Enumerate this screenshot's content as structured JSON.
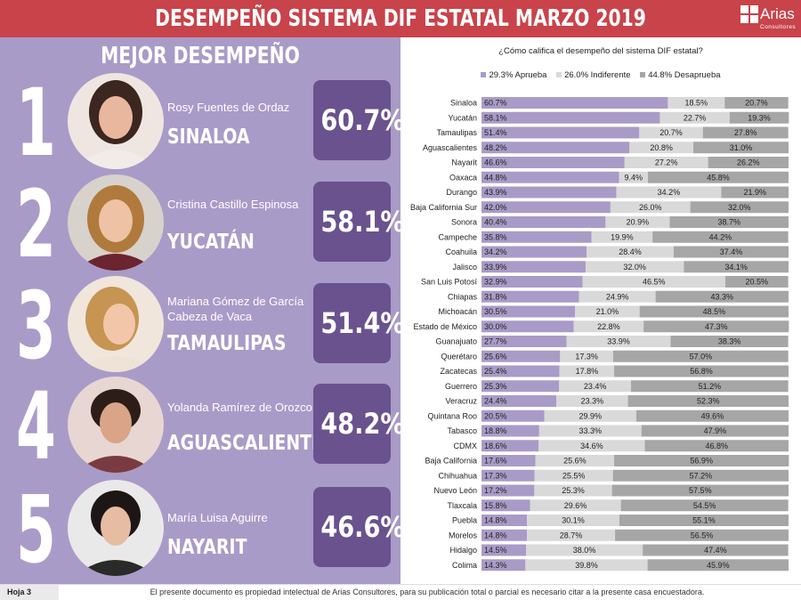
{
  "header": {
    "title": "DESEMPEÑO SISTEMA DIF ESTATAL MARZO 2019",
    "logo_text": "Arias",
    "logo_sub": "Consultores"
  },
  "left_panel": {
    "title": "MEJOR DESEMPEÑO",
    "ranks": [
      {
        "num": "1",
        "name": "Rosy Fuentes de Ordaz",
        "state": "SINALOA",
        "pct": "60.7%"
      },
      {
        "num": "2",
        "name": "Cristina Castillo Espinosa",
        "state": "YUCATÁN",
        "pct": "58.1%"
      },
      {
        "num": "3",
        "name": "Mariana Gómez de García Cabeza de Vaca",
        "state": "TAMAULIPAS",
        "pct": "51.4%"
      },
      {
        "num": "4",
        "name": "Yolanda Ramírez de Orozco",
        "state": "AGUASCALIENTES",
        "pct": "48.2%"
      },
      {
        "num": "5",
        "name": "María Luisa Aguirre",
        "state": "NAYARIT",
        "pct": "46.6%"
      }
    ]
  },
  "chart_data": {
    "type": "bar",
    "orientation": "horizontal",
    "stacked": true,
    "percent_stacked": true,
    "title": "¿Cómo califica el desempeño del sistema DIF estatal?",
    "legend_position": "top",
    "categories": [
      "Sinaloa",
      "Yucatán",
      "Tamaulipas",
      "Aguascalientes",
      "Nayarit",
      "Oaxaca",
      "Durango",
      "Baja California Sur",
      "Sonora",
      "Campeche",
      "Coahuila",
      "Jalisco",
      "San Luis Potosí",
      "Chiapas",
      "Michoacán",
      "Estado de México",
      "Guanajuato",
      "Querétaro",
      "Zacatecas",
      "Guerrero",
      "Veracruz",
      "Quintana Roo",
      "Tabasco",
      "CDMX",
      "Baja California",
      "Chihuahua",
      "Nuevo León",
      "Tlaxcala",
      "Puebla",
      "Morelos",
      "Hidalgo",
      "Colima"
    ],
    "series": [
      {
        "name": "29.3% Aprueba",
        "color": "#a99bc7",
        "values": [
          60.7,
          58.1,
          51.4,
          48.2,
          46.6,
          44.8,
          43.9,
          42.0,
          40.4,
          35.8,
          34.2,
          33.9,
          32.9,
          31.8,
          30.5,
          30.0,
          27.7,
          25.6,
          25.4,
          25.3,
          24.4,
          20.5,
          18.8,
          18.6,
          17.6,
          17.3,
          17.2,
          15.8,
          14.8,
          14.8,
          14.5,
          14.3
        ]
      },
      {
        "name": "26.0% Indiferente",
        "color": "#d9d9d9",
        "values": [
          18.5,
          22.7,
          20.7,
          20.8,
          27.2,
          9.4,
          34.2,
          26.0,
          20.9,
          19.9,
          28.4,
          32.0,
          46.5,
          24.9,
          21.0,
          22.8,
          33.9,
          17.3,
          17.8,
          23.4,
          23.3,
          29.9,
          33.3,
          34.6,
          25.6,
          25.5,
          25.3,
          29.6,
          30.1,
          28.7,
          38.0,
          39.8
        ]
      },
      {
        "name": "44.8% Desaprueba",
        "color": "#a6a6a6",
        "values": [
          20.7,
          19.3,
          27.8,
          31.0,
          26.2,
          45.8,
          21.9,
          32.0,
          38.7,
          44.2,
          37.4,
          34.1,
          20.5,
          43.3,
          48.5,
          47.3,
          38.3,
          57.0,
          56.8,
          51.2,
          52.3,
          49.6,
          47.9,
          46.8,
          56.9,
          57.2,
          57.5,
          54.5,
          55.1,
          56.5,
          47.4,
          45.9
        ]
      }
    ],
    "value_labels": [
      [
        "60.7%",
        "18.5%",
        "20.7%"
      ],
      [
        "58.1%",
        "22.7%",
        "19.3%"
      ],
      [
        "51.4%",
        "20.7%",
        "27.8%"
      ],
      [
        "48.2%",
        "20.8%",
        "31.0%"
      ],
      [
        "46.6%",
        "27.2%",
        "26.2%"
      ],
      [
        "44.8%",
        "9.4%",
        "45.8%"
      ],
      [
        "43.9%",
        "34.2%",
        "21.9%"
      ],
      [
        "42.0%",
        "26.0%",
        "32.0%"
      ],
      [
        "40.4%",
        "20.9%",
        "38.7%"
      ],
      [
        "35.8%",
        "19.9%",
        "44.2%"
      ],
      [
        "34.2%",
        "28.4%",
        "37.4%"
      ],
      [
        "33.9%",
        "32.0%",
        "34.1%"
      ],
      [
        "32.9%",
        "46.5%",
        "20.5%"
      ],
      [
        "31.8%",
        "24.9%",
        "43.3%"
      ],
      [
        "30.5%",
        "21.0%",
        "48.5%"
      ],
      [
        "30.0%",
        "22.8%",
        "47.3%"
      ],
      [
        "27.7%",
        "33.9%",
        "38.3%"
      ],
      [
        "25.6%",
        "17.3%",
        "57.0%"
      ],
      [
        "25.4%",
        "17.8%",
        "56.8%"
      ],
      [
        "25.3%",
        "23.4%",
        "51.2%"
      ],
      [
        "24.4%",
        "23.3%",
        "52.3%"
      ],
      [
        "20.5%",
        "29.9%",
        "49.6%"
      ],
      [
        "18.8%",
        "33.3%",
        "47.9%"
      ],
      [
        "18.6%",
        "34.6%",
        "46.8%"
      ],
      [
        "17.6%",
        "25.6%",
        "56.9%"
      ],
      [
        "17.3%",
        "25.5%",
        "57.2%"
      ],
      [
        "17.2%",
        "25.3%",
        "57.5%"
      ],
      [
        "15.8%",
        "29.6%",
        "54.5%"
      ],
      [
        "14.8%",
        "30.1%",
        "55.1%"
      ],
      [
        "14.8%",
        "28.7%",
        "56.5%"
      ],
      [
        "14.5%",
        "38.0%",
        "47.4%"
      ],
      [
        "14.3%",
        "39.8%",
        "45.9%"
      ]
    ]
  },
  "footer": {
    "page": "Hoja 3",
    "note": "El presente documento es propiedad intelectual de Arias Consultores, para su publicación total o parcial es necesario citar a la presente casa encuestadora."
  }
}
